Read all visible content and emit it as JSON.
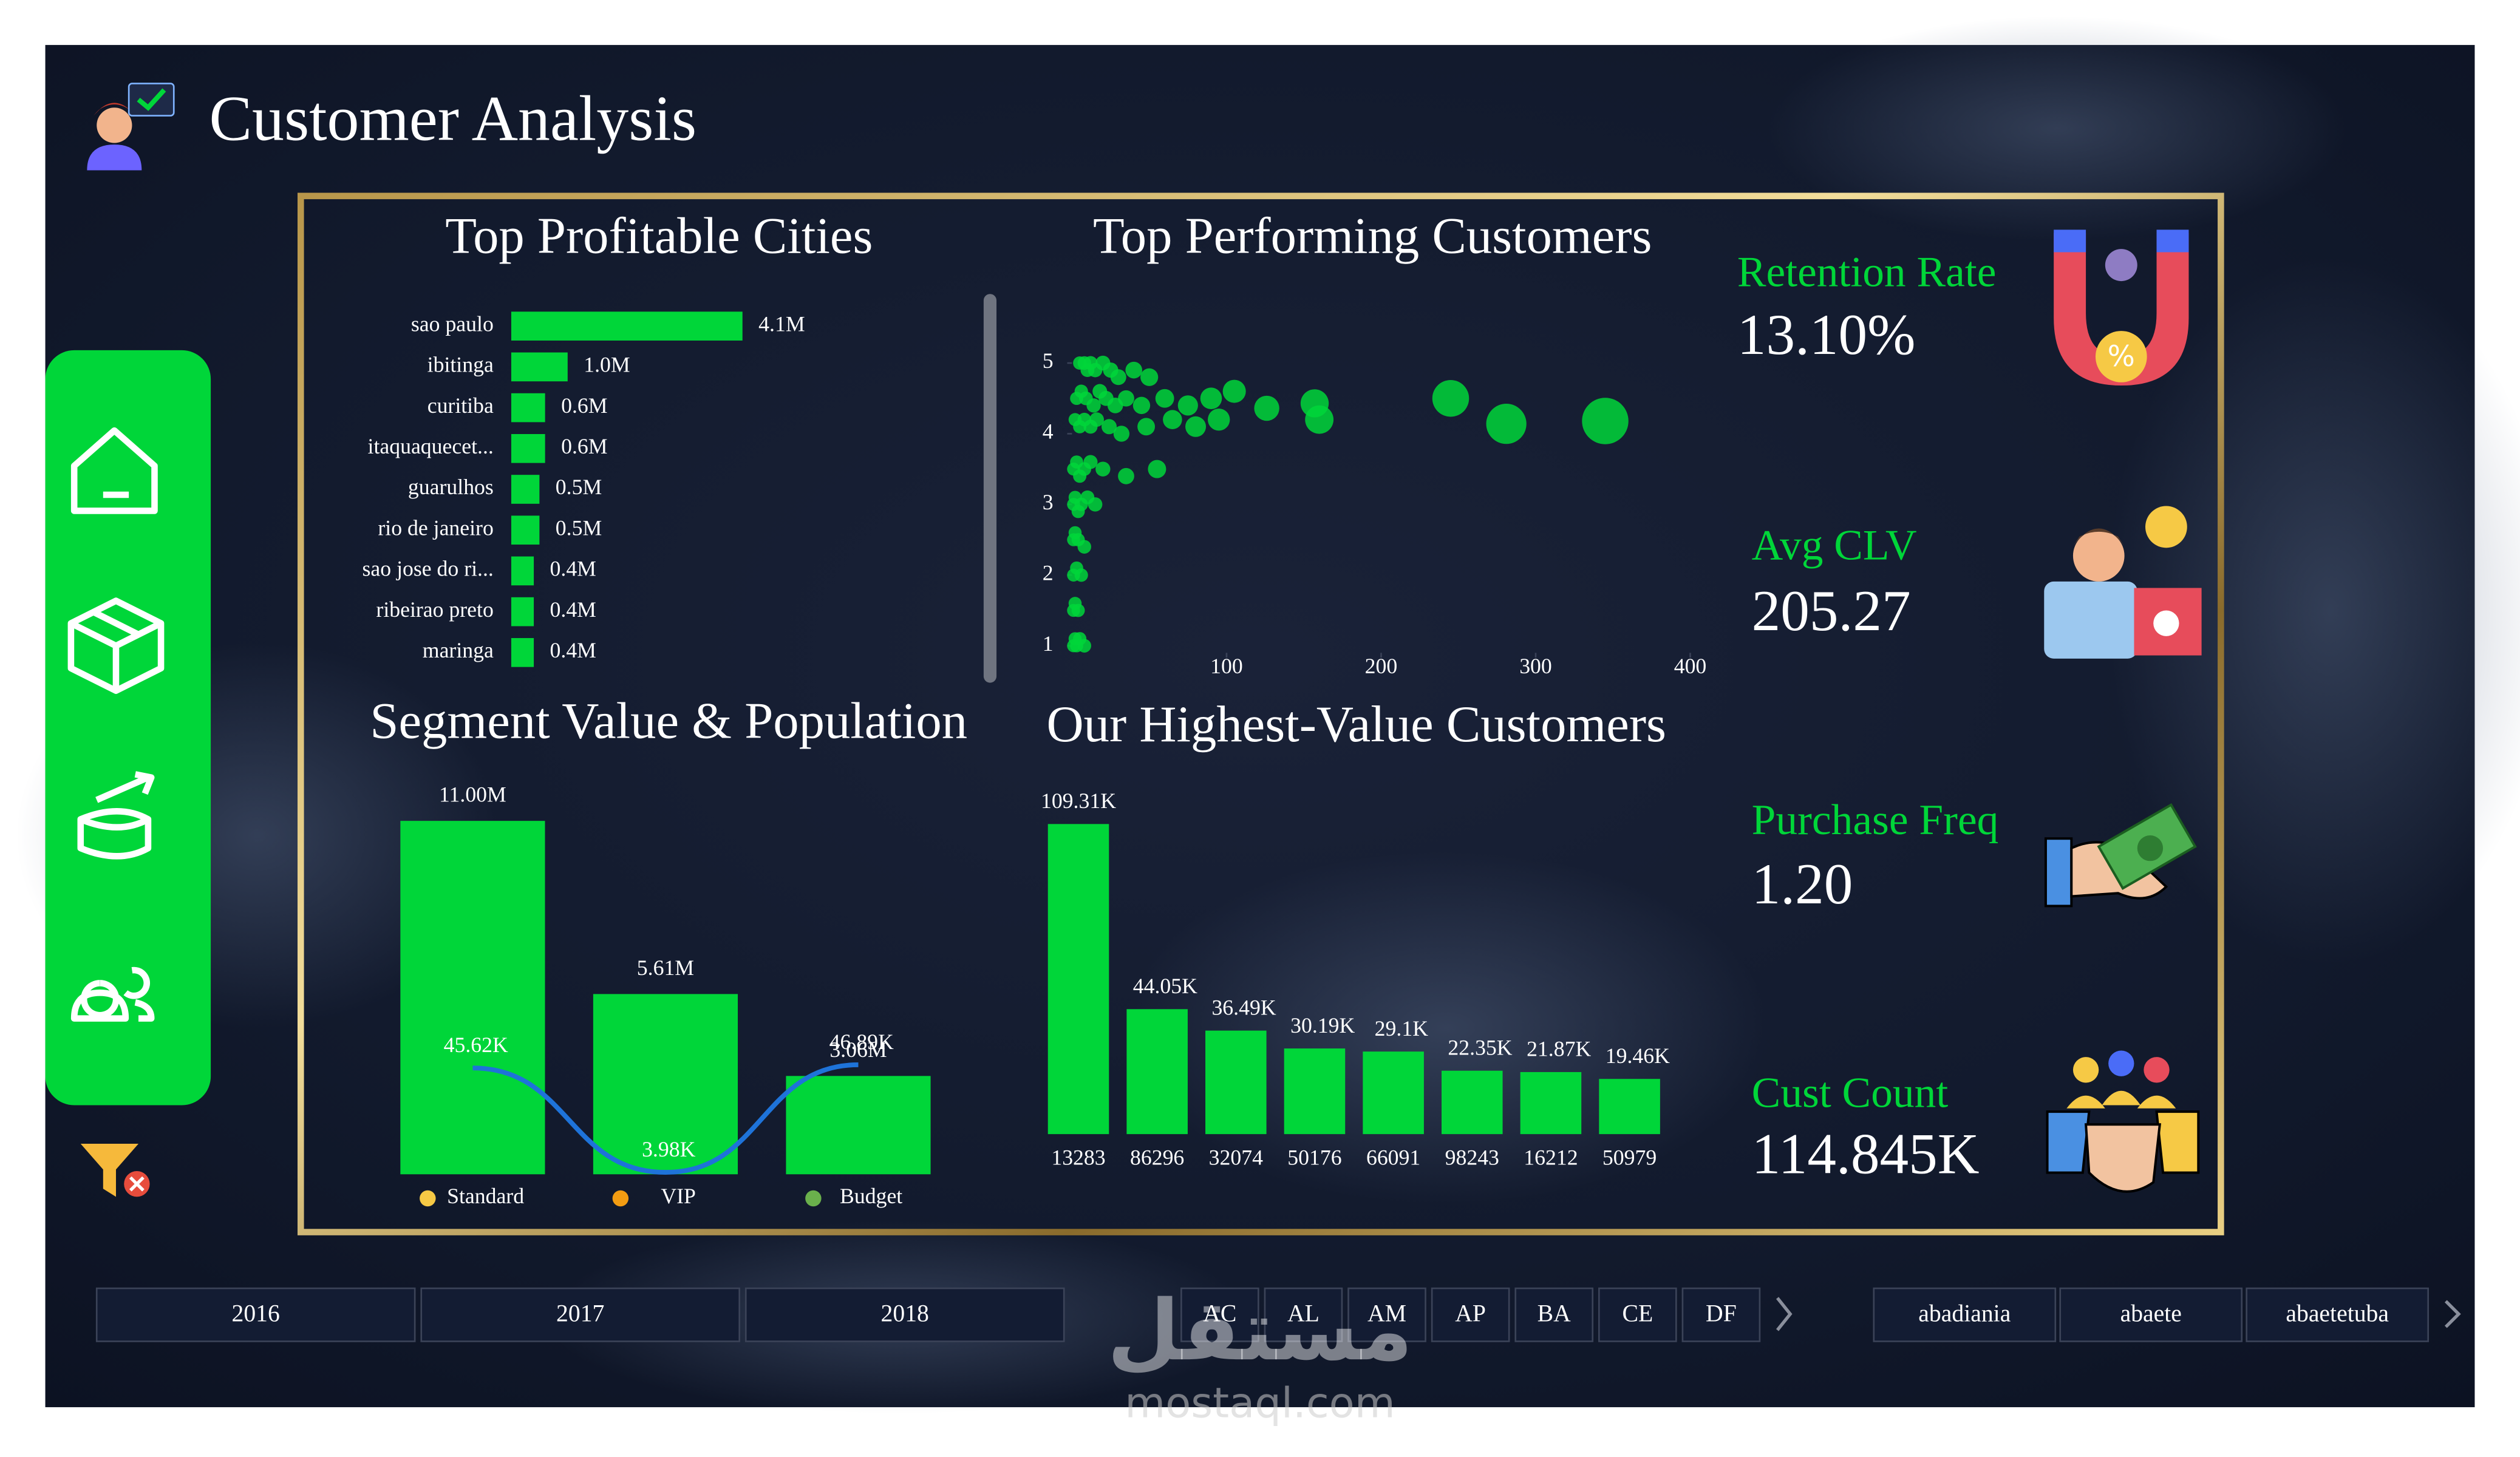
{
  "title": "Customer Analysis",
  "chart_data": [
    {
      "type": "hbar",
      "title": "Top Profitable Cities",
      "categories": [
        "sao paulo",
        "ibitinga",
        "curitiba",
        "itaquaquecet...",
        "guarulhos",
        "rio de janeiro",
        "sao jose do ri...",
        "ribeirao preto",
        "maringa"
      ],
      "values": [
        4.1,
        1.0,
        0.6,
        0.6,
        0.5,
        0.5,
        0.4,
        0.4,
        0.4
      ],
      "value_labels": [
        "4.1M",
        "1.0M",
        "0.6M",
        "0.6M",
        "0.5M",
        "0.5M",
        "0.4M",
        "0.4M",
        "0.4M"
      ],
      "color": "#00d639"
    },
    {
      "type": "scatter",
      "title": "Top Performing Customers",
      "x": [
        5,
        8,
        10,
        12,
        15,
        20,
        25,
        30,
        40,
        50,
        3,
        6,
        9,
        14,
        18,
        22,
        28,
        35,
        45,
        60,
        75,
        90,
        105,
        126,
        157,
        160,
        2,
        5,
        8,
        12,
        16,
        24,
        32,
        48,
        65,
        80,
        95,
        245,
        281,
        345,
        1,
        3,
        5,
        8,
        12,
        20,
        35,
        55,
        1,
        2,
        4,
        6,
        10,
        15,
        1,
        2,
        4,
        8,
        1,
        3,
        6,
        1,
        2,
        4,
        1,
        2,
        3,
        5,
        8
      ],
      "y": [
        5,
        5,
        4.9,
        5,
        4.9,
        5,
        4.9,
        4.8,
        4.9,
        4.8,
        4.5,
        4.6,
        4.5,
        4.4,
        4.6,
        4.5,
        4.4,
        4.5,
        4.4,
        4.5,
        4.4,
        4.5,
        4.6,
        4.36,
        4.43,
        4.2,
        4.2,
        4.1,
        4.2,
        4.1,
        4.2,
        4.1,
        4.0,
        4.1,
        4.2,
        4.1,
        4.2,
        4.5,
        4.14,
        4.18,
        3.5,
        3.6,
        3.4,
        3.5,
        3.6,
        3.5,
        3.4,
        3.5,
        3.0,
        3.1,
        2.9,
        3.0,
        3.1,
        3.0,
        2.5,
        2.6,
        2.5,
        2.4,
        2.0,
        2.1,
        2.0,
        1.5,
        1.6,
        1.5,
        1.0,
        1.1,
        1.0,
        1.1,
        1.0
      ],
      "color": "#00d639",
      "xlim": [
        0,
        420
      ],
      "ylim": [
        0.9,
        5.2
      ],
      "xticks": [
        100,
        200,
        300,
        400
      ],
      "yticks": [
        1,
        2,
        3,
        4,
        5
      ]
    },
    {
      "type": "bar_line",
      "title": "Segment Value & Population",
      "categories": [
        "Standard",
        "VIP",
        "Budget"
      ],
      "series": [
        {
          "values": [
            11.0,
            5.61,
            3.06
          ],
          "value_labels": [
            "11.00M",
            "5.61M",
            "3.06M"
          ],
          "color": "#00d639"
        },
        {
          "values": [
            45.62,
            3.98,
            46.89
          ],
          "value_labels": [
            "45.62K",
            "3.98K",
            "46.89K"
          ],
          "color": "#1e73d9"
        }
      ]
    },
    {
      "type": "bar",
      "title": "Our Highest-Value Customers",
      "categories": [
        "13283",
        "86296",
        "32074",
        "50176",
        "66091",
        "98243",
        "16212",
        "50979"
      ],
      "values": [
        109.31,
        44.05,
        36.49,
        30.19,
        29.1,
        22.35,
        21.87,
        19.46
      ],
      "value_labels": [
        "109.31K",
        "44.05K",
        "36.49K",
        "30.19K",
        "29.1K",
        "22.35K",
        "21.87K",
        "19.46K"
      ],
      "color": "#00d639"
    }
  ],
  "kpis": [
    {
      "label": "Retention Rate",
      "value": "13.10%"
    },
    {
      "label": "Avg CLV",
      "value": "205.27"
    },
    {
      "label": "Purchase Freq",
      "value": "1.20"
    },
    {
      "label": "Cust Count",
      "value": "114.845K"
    }
  ],
  "filters": {
    "years": [
      "2016",
      "2017",
      "2018"
    ],
    "states": [
      "AC",
      "AL",
      "AM",
      "AP",
      "BA",
      "CE",
      "DF"
    ],
    "cities": [
      "abadiania",
      "abaete",
      "abaetetuba"
    ]
  },
  "watermark": [
    "مستقل",
    "mostaql.com"
  ]
}
